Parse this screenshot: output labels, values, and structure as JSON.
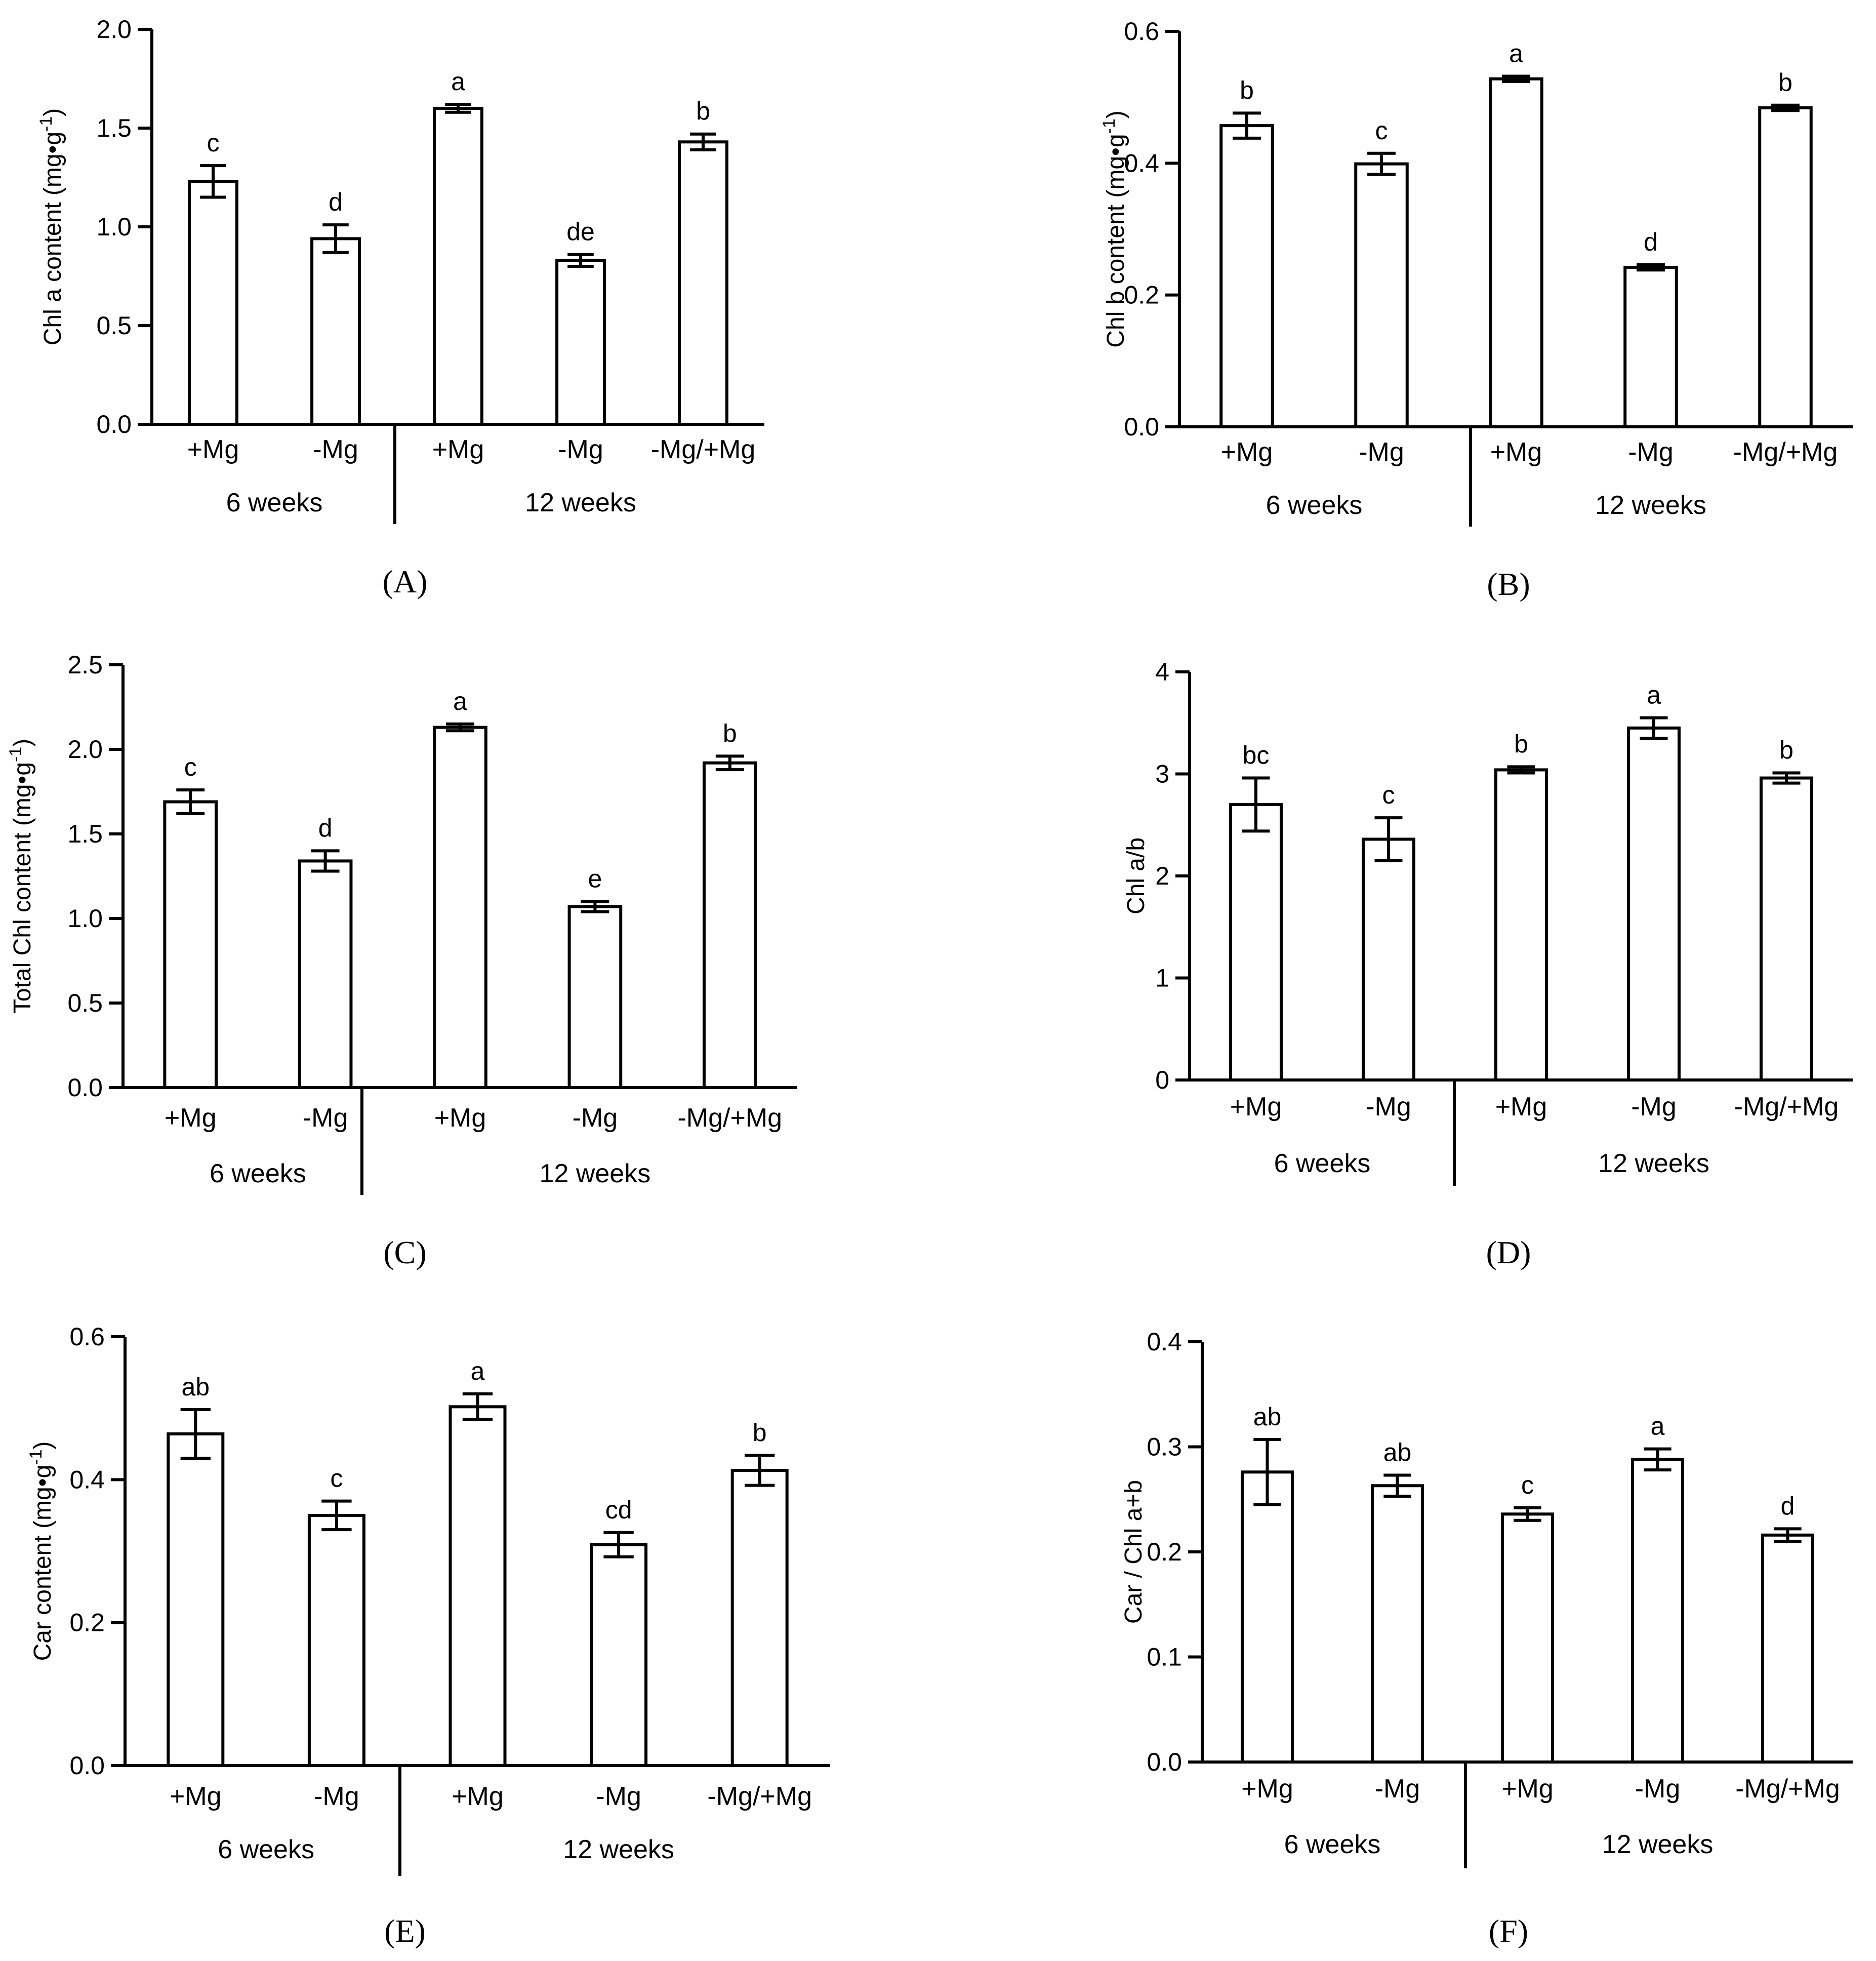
{
  "figure": {
    "groups": [
      {
        "name": "6 weeks",
        "count": 2
      },
      {
        "name": "12 weeks",
        "count": 3
      }
    ]
  },
  "chart_data": [
    {
      "panel": "A",
      "type": "bar",
      "categories": [
        "+Mg",
        "-Mg",
        "+Mg",
        "-Mg",
        "-Mg/+Mg"
      ],
      "values": [
        1.23,
        0.94,
        1.6,
        0.83,
        1.43
      ],
      "errors": [
        0.08,
        0.07,
        0.02,
        0.03,
        0.04
      ],
      "letters": [
        "c",
        "d",
        "a",
        "de",
        "b"
      ],
      "ylabel": "Chl a content (mg•g",
      "ylabel_sup": "-1",
      "ylabel_close": ")",
      "ylim": [
        0,
        2.0
      ],
      "yticks": [
        0,
        0.5,
        1.0,
        1.5,
        2.0
      ],
      "ytick_labels": [
        "0.0",
        "0.5",
        "1.0",
        "1.5",
        "2.0"
      ],
      "grid": false
    },
    {
      "panel": "B",
      "type": "bar",
      "categories": [
        "+Mg",
        "-Mg",
        "+Mg",
        "-Mg",
        "-Mg/+Mg"
      ],
      "values": [
        0.457,
        0.399,
        0.528,
        0.242,
        0.484
      ],
      "errors": [
        0.019,
        0.016,
        0.004,
        0.004,
        0.004
      ],
      "letters": [
        "b",
        "c",
        "a",
        "d",
        "b"
      ],
      "ylabel": "Chl b content (mg•g",
      "ylabel_sup": "-1",
      "ylabel_close": ")",
      "ylim": [
        0,
        0.6
      ],
      "yticks": [
        0,
        0.2,
        0.4,
        0.6
      ],
      "ytick_labels": [
        "0.0",
        "0.2",
        "0.4",
        "0.6"
      ],
      "grid": false
    },
    {
      "panel": "C",
      "type": "bar",
      "categories": [
        "+Mg",
        "-Mg",
        "+Mg",
        "-Mg",
        "-Mg/+Mg"
      ],
      "values": [
        1.69,
        1.34,
        2.13,
        1.07,
        1.92
      ],
      "errors": [
        0.07,
        0.06,
        0.02,
        0.03,
        0.04
      ],
      "letters": [
        "c",
        "d",
        "a",
        "e",
        "b"
      ],
      "ylabel": "Total Chl content (mg•g",
      "ylabel_sup": "-1",
      "ylabel_close": ")",
      "ylim": [
        0,
        2.5
      ],
      "yticks": [
        0,
        0.5,
        1.0,
        1.5,
        2.0,
        2.5
      ],
      "ytick_labels": [
        "0.0",
        "0.5",
        "1.0",
        "1.5",
        "2.0",
        "2.5"
      ],
      "grid": false
    },
    {
      "panel": "D",
      "type": "bar",
      "categories": [
        "+Mg",
        "-Mg",
        "+Mg",
        "-Mg",
        "-Mg/+Mg"
      ],
      "values": [
        2.7,
        2.36,
        3.04,
        3.45,
        2.96
      ],
      "errors": [
        0.26,
        0.21,
        0.03,
        0.1,
        0.05
      ],
      "letters": [
        "bc",
        "c",
        "b",
        "a",
        "b"
      ],
      "ylabel": "Chl a/b",
      "ylabel_sup": "",
      "ylabel_close": "",
      "ylim": [
        0,
        4
      ],
      "yticks": [
        0,
        1,
        2,
        3,
        4
      ],
      "ytick_labels": [
        "0",
        "1",
        "2",
        "3",
        "4"
      ],
      "grid": false
    },
    {
      "panel": "E",
      "type": "bar",
      "categories": [
        "+Mg",
        "-Mg",
        "+Mg",
        "-Mg",
        "-Mg/+Mg"
      ],
      "values": [
        0.464,
        0.35,
        0.502,
        0.309,
        0.413
      ],
      "errors": [
        0.034,
        0.02,
        0.018,
        0.017,
        0.021
      ],
      "letters": [
        "ab",
        "c",
        "a",
        "cd",
        "b"
      ],
      "ylabel": "Car content (mg•g",
      "ylabel_sup": "-1",
      "ylabel_close": ")",
      "ylim": [
        0,
        0.6
      ],
      "yticks": [
        0,
        0.2,
        0.4,
        0.6
      ],
      "ytick_labels": [
        "0.0",
        "0.2",
        "0.4",
        "0.6"
      ],
      "grid": false
    },
    {
      "panel": "F",
      "type": "bar",
      "categories": [
        "+Mg",
        "-Mg",
        "+Mg",
        "-Mg",
        "-Mg/+Mg"
      ],
      "values": [
        0.276,
        0.263,
        0.236,
        0.288,
        0.216
      ],
      "errors": [
        0.031,
        0.01,
        0.006,
        0.01,
        0.006
      ],
      "letters": [
        "ab",
        "ab",
        "c",
        "a",
        "d"
      ],
      "ylabel": "Car / Chl a+b",
      "ylabel_sup": "",
      "ylabel_close": "",
      "ylim": [
        0,
        0.4
      ],
      "yticks": [
        0,
        0.1,
        0.2,
        0.3,
        0.4
      ],
      "ytick_labels": [
        "0.0",
        "0.1",
        "0.2",
        "0.3",
        "0.4"
      ],
      "grid": false
    }
  ],
  "panel_labels": [
    "(A)",
    "(B)",
    "(C)",
    "(D)",
    "(E)",
    "(F)"
  ]
}
